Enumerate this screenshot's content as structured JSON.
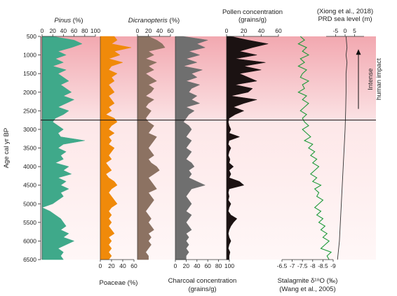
{
  "chart_data": {
    "type": "area",
    "ylabel": "Age cal yr BP",
    "ylim": [
      500,
      6500
    ],
    "yticks": [
      500,
      1000,
      1500,
      2000,
      2500,
      3000,
      3500,
      4000,
      4500,
      5000,
      5500,
      6000,
      6500
    ],
    "boundary_age": 2750,
    "annotation": {
      "line1": "Intense",
      "line2": "human impact"
    },
    "colors": {
      "pinus": "#3fa98a",
      "poaceae": "#f08a0a",
      "dicranopteris": "#8c7262",
      "charcoal": "#6f6f6f",
      "pollen": "#1b1212",
      "oxygen": "#1f9a3a",
      "sea": "#333333",
      "band_top": "#f2a8b0"
    },
    "panels": [
      {
        "key": "pinus",
        "label_name": "Pinus",
        "label_unit": " (%)",
        "label_pos": "top",
        "ticks": [
          0,
          20,
          40,
          60,
          80,
          100
        ],
        "xlim": [
          0,
          100
        ],
        "style": "fill",
        "color": "pinus",
        "ages": [
          500,
          600,
          700,
          800,
          900,
          1000,
          1100,
          1200,
          1300,
          1400,
          1500,
          1600,
          1700,
          1800,
          1900,
          2000,
          2100,
          2200,
          2300,
          2400,
          2500,
          2600,
          2700,
          2800,
          2900,
          3000,
          3100,
          3200,
          3300,
          3400,
          3500,
          3600,
          3700,
          3800,
          3900,
          4000,
          4100,
          4200,
          4300,
          4400,
          4500,
          4600,
          4700,
          4800,
          4900,
          5000,
          5100,
          5200,
          5300,
          5400,
          5500,
          5600,
          5700,
          5800,
          5900,
          6000,
          6100,
          6200,
          6300,
          6400,
          6500
        ],
        "values": [
          20,
          60,
          75,
          55,
          30,
          45,
          25,
          40,
          20,
          45,
          30,
          40,
          50,
          35,
          45,
          55,
          40,
          60,
          45,
          30,
          50,
          40,
          25,
          20,
          30,
          40,
          30,
          35,
          80,
          40,
          30,
          45,
          35,
          40,
          25,
          50,
          40,
          55,
          30,
          45,
          35,
          50,
          35,
          40,
          30,
          20,
          0,
          15,
          25,
          35,
          40,
          45,
          35,
          50,
          40,
          60,
          45,
          30,
          40,
          35,
          40
        ]
      },
      {
        "key": "poaceae",
        "label_name": "Poaceae",
        "label_unit": " (%)",
        "label_pos": "bottom",
        "ticks": [
          0,
          20,
          40,
          60
        ],
        "xlim": [
          0,
          60
        ],
        "style": "fill",
        "color": "poaceae",
        "ages": [
          500,
          600,
          700,
          800,
          900,
          1000,
          1100,
          1200,
          1300,
          1400,
          1500,
          1600,
          1700,
          1800,
          1900,
          2000,
          2100,
          2200,
          2300,
          2400,
          2500,
          2600,
          2700,
          2800,
          2900,
          3000,
          3100,
          3200,
          3300,
          3400,
          3500,
          3600,
          3700,
          3800,
          3900,
          4000,
          4100,
          4200,
          4300,
          4400,
          4500,
          4600,
          4700,
          4800,
          4900,
          5000,
          5100,
          5200,
          5300,
          5400,
          5500,
          5600,
          5700,
          5800,
          5900,
          6000,
          6100,
          6200,
          6300,
          6400,
          6500
        ],
        "values": [
          25,
          30,
          20,
          55,
          25,
          35,
          15,
          40,
          20,
          15,
          30,
          20,
          25,
          15,
          20,
          25,
          15,
          20,
          25,
          15,
          20,
          10,
          25,
          30,
          20,
          15,
          25,
          15,
          20,
          15,
          25,
          20,
          15,
          20,
          10,
          15,
          20,
          10,
          15,
          25,
          30,
          20,
          15,
          20,
          25,
          30,
          20,
          15,
          20,
          15,
          20,
          15,
          20,
          25,
          15,
          20,
          15,
          20,
          15,
          20,
          15
        ]
      },
      {
        "key": "dicranopteris",
        "label_name": "Dicranopteris",
        "label_unit": " (%)",
        "label_pos": "top",
        "ticks": [
          0,
          20,
          40,
          60
        ],
        "xlim": [
          0,
          60
        ],
        "style": "fill",
        "color": "dicranopteris",
        "ages": [
          500,
          600,
          700,
          800,
          900,
          1000,
          1100,
          1200,
          1300,
          1400,
          1500,
          1600,
          1700,
          1800,
          1900,
          2000,
          2100,
          2200,
          2300,
          2400,
          2500,
          2600,
          2700,
          2800,
          2900,
          3000,
          3100,
          3200,
          3300,
          3400,
          3500,
          3600,
          3700,
          3800,
          3900,
          4000,
          4100,
          4200,
          4300,
          4400,
          4500,
          4600,
          4700,
          4800,
          4900,
          5000,
          5100,
          5200,
          5300,
          5400,
          5500,
          5600,
          5700,
          5800,
          5900,
          6000,
          6100,
          6200,
          6300,
          6400,
          6500
        ],
        "values": [
          20,
          35,
          45,
          50,
          20,
          30,
          15,
          35,
          20,
          30,
          15,
          25,
          35,
          20,
          30,
          25,
          15,
          30,
          20,
          15,
          25,
          20,
          15,
          20,
          30,
          25,
          20,
          35,
          30,
          25,
          20,
          25,
          30,
          20,
          25,
          35,
          40,
          30,
          20,
          25,
          30,
          35,
          20,
          25,
          30,
          25,
          20,
          15,
          20,
          25,
          20,
          25,
          30,
          20,
          25,
          20,
          25,
          20,
          15,
          20,
          20
        ]
      },
      {
        "key": "charcoal",
        "label_name": "Charcoal concentration",
        "label_unit": "(grains/g)",
        "label_pos": "bottom",
        "ticks": [
          0,
          20,
          40,
          60,
          80,
          100
        ],
        "xlim": [
          0,
          100
        ],
        "style": "fill",
        "color": "charcoal",
        "ages": [
          500,
          600,
          700,
          800,
          900,
          1000,
          1100,
          1200,
          1300,
          1400,
          1500,
          1600,
          1700,
          1800,
          1900,
          2000,
          2100,
          2200,
          2300,
          2400,
          2500,
          2600,
          2700,
          2800,
          2900,
          3000,
          3100,
          3200,
          3300,
          3400,
          3500,
          3600,
          3700,
          3800,
          3900,
          4000,
          4100,
          4200,
          4300,
          4400,
          4500,
          4600,
          4700,
          4800,
          4900,
          5000,
          5100,
          5200,
          5300,
          5400,
          5500,
          5600,
          5700,
          5800,
          5900,
          6000,
          6100,
          6200,
          6300,
          6400,
          6500
        ],
        "values": [
          15,
          60,
          40,
          55,
          25,
          45,
          20,
          40,
          15,
          50,
          30,
          40,
          20,
          45,
          30,
          25,
          40,
          30,
          45,
          20,
          35,
          25,
          20,
          15,
          25,
          30,
          25,
          20,
          30,
          25,
          20,
          30,
          25,
          20,
          30,
          35,
          25,
          30,
          25,
          40,
          55,
          30,
          25,
          20,
          25,
          30,
          25,
          20,
          30,
          25,
          20,
          25,
          30,
          20,
          25,
          20,
          25,
          20,
          25,
          20,
          20
        ]
      },
      {
        "key": "pollen",
        "label_name": "Pollen concentration",
        "label_unit": "(grains/g)",
        "label_pos": "top",
        "ticks": [
          0,
          20,
          40,
          60
        ],
        "xlim": [
          0,
          60
        ],
        "style": "fill",
        "color": "pollen",
        "ages": [
          500,
          600,
          700,
          800,
          900,
          1000,
          1100,
          1200,
          1300,
          1400,
          1500,
          1600,
          1700,
          1800,
          1900,
          2000,
          2100,
          2200,
          2300,
          2400,
          2500,
          2600,
          2700,
          2800,
          2900,
          3000,
          3100,
          3200,
          3300,
          3400,
          3500,
          3600,
          3700,
          3800,
          3900,
          4000,
          4100,
          4200,
          4300,
          4400,
          4500,
          4600,
          4700,
          4800,
          4900,
          5000,
          5100,
          5200,
          5300,
          5400,
          5500,
          5600,
          5700,
          5800,
          5900,
          6000,
          6100,
          6200,
          6300,
          6400,
          6500
        ],
        "values": [
          5,
          25,
          48,
          30,
          15,
          35,
          10,
          45,
          20,
          40,
          15,
          25,
          35,
          10,
          30,
          25,
          5,
          35,
          20,
          8,
          20,
          10,
          3,
          2,
          3,
          5,
          3,
          15,
          3,
          2,
          5,
          3,
          2,
          4,
          3,
          8,
          3,
          5,
          3,
          15,
          20,
          3,
          2,
          3,
          2,
          5,
          3,
          2,
          5,
          12,
          8,
          5,
          3,
          2,
          3,
          5,
          3,
          2,
          4,
          3,
          3
        ]
      },
      {
        "key": "oxygen",
        "label_name": "Stalagmite δ¹⁸O (‰)",
        "label_unit": "(Wang et al., 2005)",
        "label_pos": "bottom",
        "ticks": [
          -6.5,
          -7,
          -7.5,
          -8,
          -8.5,
          -9
        ],
        "tick_labels": [
          "-6.5",
          "-7",
          "-7.5",
          "-8",
          "-8.5",
          "-9"
        ],
        "xlim": [
          -6.5,
          -9
        ],
        "style": "line",
        "color": "oxygen",
        "ages": [
          500,
          600,
          700,
          800,
          900,
          1000,
          1100,
          1200,
          1300,
          1400,
          1500,
          1600,
          1700,
          1800,
          1900,
          2000,
          2100,
          2200,
          2300,
          2400,
          2500,
          2600,
          2700,
          2800,
          2900,
          3000,
          3100,
          3200,
          3300,
          3400,
          3500,
          3600,
          3700,
          3800,
          3900,
          4000,
          4100,
          4200,
          4300,
          4400,
          4500,
          4600,
          4700,
          4800,
          4900,
          5000,
          5100,
          5200,
          5300,
          5400,
          5500,
          5600,
          5700,
          5800,
          5900,
          6000,
          6100,
          6200,
          6300,
          6400,
          6500
        ],
        "values": [
          -7.4,
          -7.6,
          -7.3,
          -7.7,
          -7.5,
          -7.8,
          -7.4,
          -7.6,
          -7.3,
          -7.7,
          -7.5,
          -7.4,
          -7.8,
          -7.5,
          -7.6,
          -7.3,
          -7.7,
          -7.5,
          -7.8,
          -7.6,
          -7.4,
          -7.7,
          -7.5,
          -7.6,
          -7.8,
          -7.5,
          -7.7,
          -7.9,
          -7.6,
          -8.0,
          -7.8,
          -8.1,
          -7.9,
          -8.2,
          -8.0,
          -8.3,
          -8.1,
          -7.9,
          -8.2,
          -8.0,
          -8.4,
          -8.1,
          -8.3,
          -8.2,
          -8.5,
          -8.3,
          -8.1,
          -8.4,
          -8.2,
          -8.5,
          -8.3,
          -8.6,
          -8.4,
          -8.7,
          -8.5,
          -8.8,
          -8.6,
          -8.4,
          -8.9,
          -8.7,
          -8.8
        ]
      },
      {
        "key": "sea",
        "label_name": "(Xiong et al., 2018)",
        "label_unit": "PRD sea level (m)",
        "label_pos": "top",
        "ticks": [
          -5,
          0,
          5
        ],
        "tick_labels": [
          "-5",
          "0",
          "5"
        ],
        "xlim": [
          -10,
          10
        ],
        "style": "line",
        "color": "sea",
        "ages": [
          500,
          800,
          1000,
          1200,
          1500,
          2000,
          2500,
          3000,
          3500,
          4000,
          4500,
          5000,
          5500,
          6000,
          6500
        ],
        "values": [
          0.5,
          1.0,
          0.5,
          1.0,
          0.5,
          0.5,
          0.3,
          0,
          -0.5,
          -1.0,
          -1.5,
          -2.0,
          -2.5,
          -3.0,
          -4.0
        ]
      }
    ]
  }
}
